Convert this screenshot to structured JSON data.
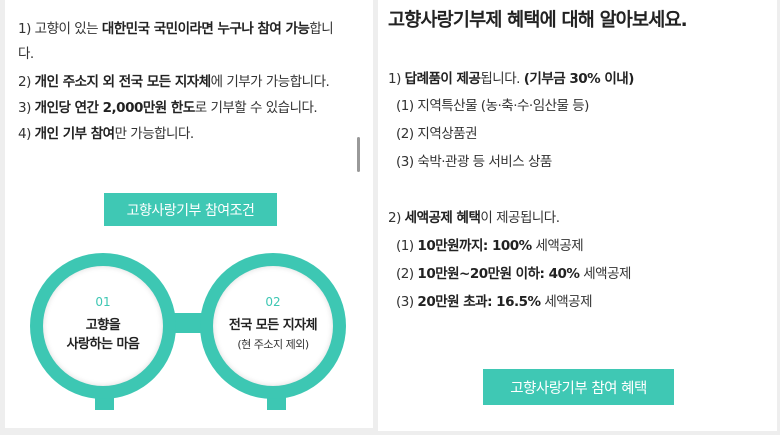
{
  "left": {
    "lines": [
      [
        {
          "t": "1) 고향이 있는 "
        },
        {
          "t": "대한민국 국민이라면 누구나 참여 가능",
          "b": 1
        },
        {
          "t": "합니"
        }
      ],
      [
        {
          "t": "다."
        }
      ],
      [
        {
          "t": "2) "
        },
        {
          "t": "개인 주소지 외 전국 모든 지자체",
          "b": 1
        },
        {
          "t": "에 기부가 가능합니다."
        }
      ],
      [
        {
          "t": "3) "
        },
        {
          "t": "개인당 연간 2,000만원 한도",
          "b": 1
        },
        {
          "t": "로 기부할 수 있습니다."
        }
      ],
      [
        {
          "t": "4) "
        },
        {
          "t": "개인 기부 참여",
          "b": 1
        },
        {
          "t": "만 가능합니다."
        }
      ]
    ],
    "button": "고향사랑기부 참여조건",
    "circles": [
      {
        "num": "01",
        "title1": "고향을",
        "title2": "사랑하는 마음",
        "sub": ""
      },
      {
        "num": "02",
        "title1": "전국 모든 지자체",
        "title2": "",
        "sub": "(현 주소지 제외)"
      }
    ]
  },
  "right": {
    "title": "고향사랑기부제 혜택에 대해 알아보세요.",
    "lines": [
      [
        {
          "t": "1) "
        },
        {
          "t": "답례품이 제공",
          "b": 1
        },
        {
          "t": "됩니다. "
        },
        {
          "t": "(기부금 30% 이내)",
          "b": 1
        }
      ],
      [
        {
          "t": "(1) 지역특산물 (농·축·수·임산물 등)"
        }
      ],
      [
        {
          "t": "(2) 지역상품권"
        }
      ],
      [
        {
          "t": "(3) 숙박·관광 등 서비스 상품"
        }
      ],
      [
        {
          "t": "2) "
        },
        {
          "t": "세액공제 혜택",
          "b": 1
        },
        {
          "t": "이 제공됩니다."
        }
      ],
      [
        {
          "t": "(1) "
        },
        {
          "t": "10만원까지: 100%",
          "b": 1
        },
        {
          "t": " 세액공제"
        }
      ],
      [
        {
          "t": "(2) "
        },
        {
          "t": "10만원~20만원 이하: 40%",
          "b": 1
        },
        {
          "t": " 세액공제"
        }
      ],
      [
        {
          "t": "(3) "
        },
        {
          "t": "20만원 초과: 16.5%",
          "b": 1
        },
        {
          "t": " 세액공제"
        }
      ]
    ],
    "button": "고향사랑기부 참여 혜택"
  },
  "colors": {
    "accent": "#3dc7b3"
  }
}
